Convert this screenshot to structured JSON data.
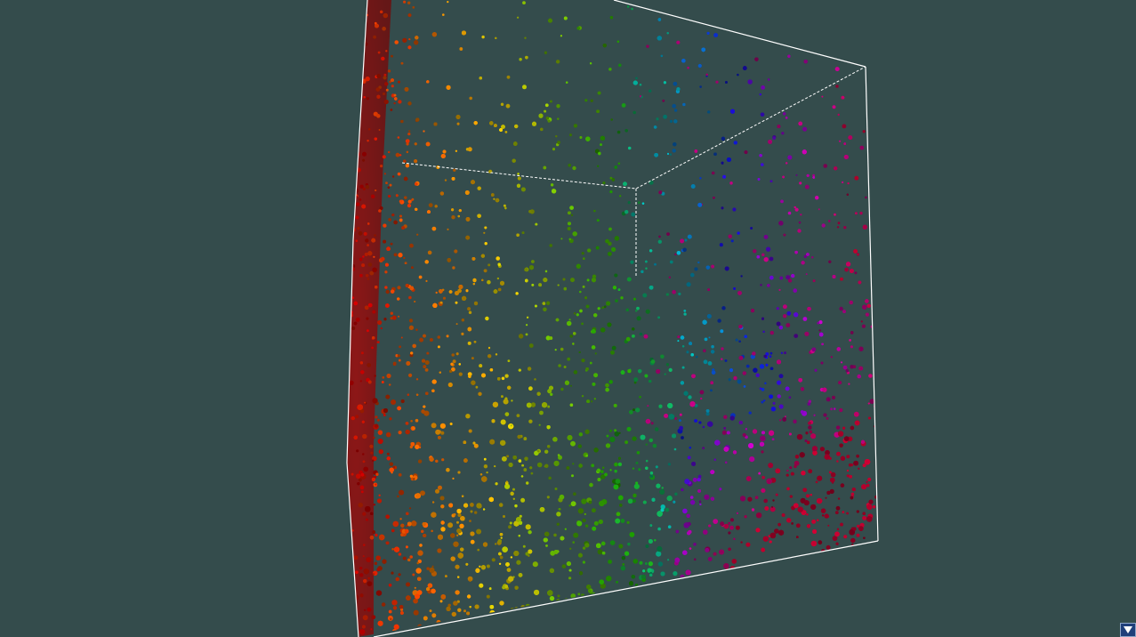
{
  "viewer": {
    "background_color": "#344c4c",
    "box_edge_color": "#ffffff",
    "particle_colormap": [
      "#d00000",
      "#ff6a00",
      "#ffd400",
      "#7ac800",
      "#1ea800",
      "#00c8c8",
      "#1010e0",
      "#c800c8",
      "#c80030"
    ]
  },
  "controls": {
    "menu_toggle_icon": "triangle-down-icon"
  }
}
